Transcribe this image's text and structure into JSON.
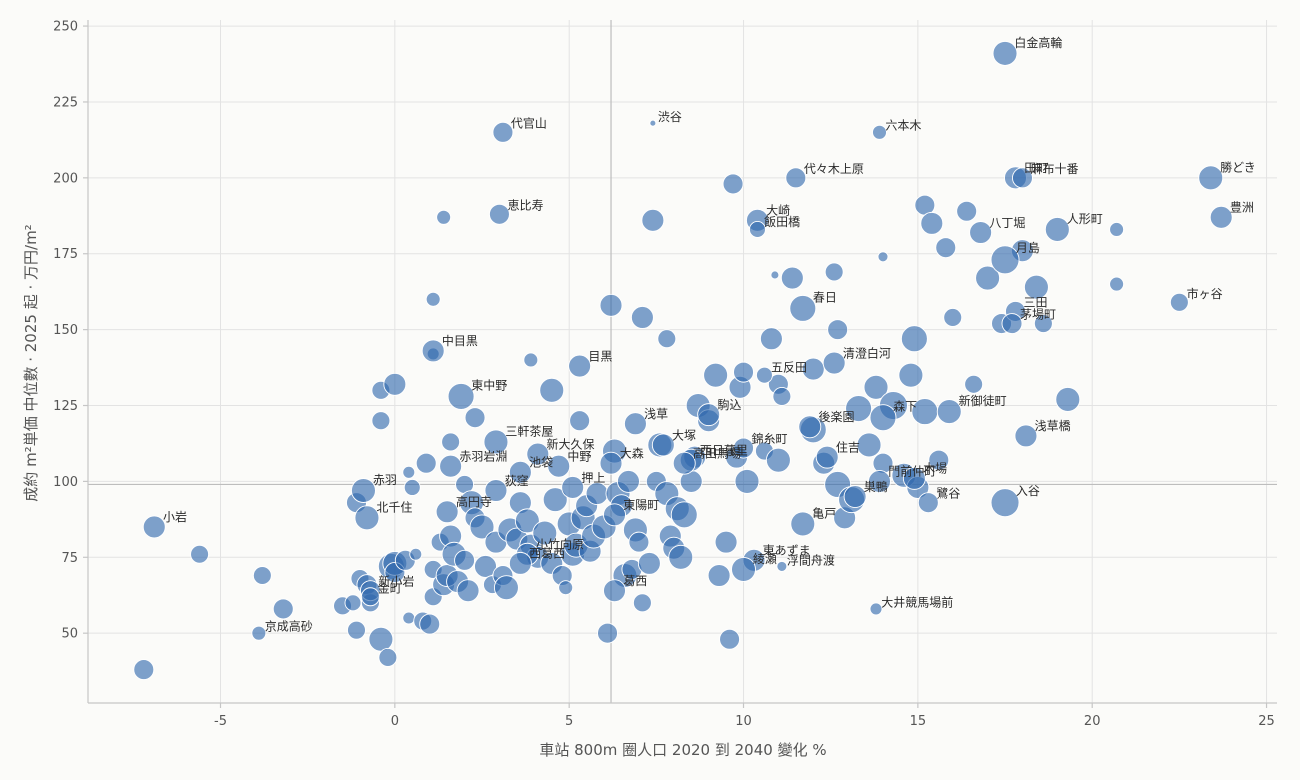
{
  "chart_data": {
    "type": "scatter",
    "xlabel": "車站 800m 圈人口 2020 到 2040 變化 %",
    "ylabel": "成約 m²単価 中位數 · 2025 起 · 万円/m²",
    "xlim": [
      -8.8,
      25.3
    ],
    "ylim": [
      27,
      252
    ],
    "xticks": [
      -5,
      0,
      5,
      10,
      15,
      20,
      25
    ],
    "yticks": [
      50,
      75,
      100,
      125,
      150,
      175,
      200,
      225,
      250
    ],
    "grid": true,
    "reference_lines": {
      "x": 6.2,
      "y": 99
    },
    "point_color": "#2e68ad",
    "labeled_points": [
      {
        "name": "白金高輪",
        "x": 17.5,
        "y": 241,
        "size": 12
      },
      {
        "name": "渋谷",
        "x": 7.4,
        "y": 218,
        "size": 3
      },
      {
        "name": "代官山",
        "x": 3.1,
        "y": 215,
        "size": 10
      },
      {
        "name": "六本木",
        "x": 13.9,
        "y": 215,
        "size": 7
      },
      {
        "name": "代々木上原",
        "x": 11.5,
        "y": 200,
        "size": 10
      },
      {
        "name": "田町",
        "x": 17.8,
        "y": 200,
        "size": 11
      },
      {
        "name": "麻布十番",
        "x": 18.0,
        "y": 200,
        "size": 10
      },
      {
        "name": "勝どき",
        "x": 23.4,
        "y": 200,
        "size": 12
      },
      {
        "name": "恵比寿",
        "x": 3.0,
        "y": 188,
        "size": 10
      },
      {
        "name": "大崎",
        "x": 10.4,
        "y": 186,
        "size": 11
      },
      {
        "name": "飯田橋",
        "x": 10.4,
        "y": 183,
        "size": 8
      },
      {
        "name": "八丁堀",
        "x": 16.8,
        "y": 182,
        "size": 11
      },
      {
        "name": "人形町",
        "x": 19.0,
        "y": 183,
        "size": 12
      },
      {
        "name": "豊洲",
        "x": 23.7,
        "y": 187,
        "size": 11
      },
      {
        "name": "月島",
        "x": 17.5,
        "y": 173,
        "size": 14
      },
      {
        "name": "春日",
        "x": 11.7,
        "y": 157,
        "size": 13
      },
      {
        "name": "市ヶ谷",
        "x": 22.5,
        "y": 159,
        "size": 9
      },
      {
        "name": "三田",
        "x": 17.8,
        "y": 156,
        "size": 10
      },
      {
        "name": "茅場町",
        "x": 17.7,
        "y": 152,
        "size": 10
      },
      {
        "name": "中目黒",
        "x": 1.1,
        "y": 143,
        "size": 11
      },
      {
        "name": "清澄白河",
        "x": 12.6,
        "y": 139,
        "size": 11
      },
      {
        "name": "目黒",
        "x": 5.3,
        "y": 138,
        "size": 11
      },
      {
        "name": "五反田",
        "x": 10.6,
        "y": 135,
        "size": 8
      },
      {
        "name": "東中野",
        "x": 1.9,
        "y": 128,
        "size": 13
      },
      {
        "name": "新御徒町",
        "x": 15.9,
        "y": 123,
        "size": 12
      },
      {
        "name": "駒込",
        "x": 9.0,
        "y": 122,
        "size": 11
      },
      {
        "name": "後楽園",
        "x": 11.9,
        "y": 118,
        "size": 11
      },
      {
        "name": "浅草",
        "x": 6.9,
        "y": 119,
        "size": 11
      },
      {
        "name": "森下",
        "x": 14.0,
        "y": 121,
        "size": 13
      },
      {
        "name": "浅草橋",
        "x": 18.1,
        "y": 115,
        "size": 11
      },
      {
        "name": "錦糸町",
        "x": 10.0,
        "y": 111,
        "size": 10
      },
      {
        "name": "大塚",
        "x": 7.7,
        "y": 112,
        "size": 11
      },
      {
        "name": "住吉",
        "x": 12.4,
        "y": 108,
        "size": 11
      },
      {
        "name": "三軒茶屋",
        "x": 2.9,
        "y": 113,
        "size": 12
      },
      {
        "name": "新大久保",
        "x": 4.1,
        "y": 109,
        "size": 11
      },
      {
        "name": "大森",
        "x": 6.2,
        "y": 106,
        "size": 11
      },
      {
        "name": "西日暮里",
        "x": 8.5,
        "y": 107,
        "size": 11
      },
      {
        "name": "高田馬場",
        "x": 8.3,
        "y": 106,
        "size": 11
      },
      {
        "name": "赤羽岩淵",
        "x": 1.6,
        "y": 105,
        "size": 11
      },
      {
        "name": "池袋",
        "x": 3.6,
        "y": 103,
        "size": 11
      },
      {
        "name": "中野",
        "x": 4.7,
        "y": 105,
        "size": 11
      },
      {
        "name": "荻窪",
        "x": 2.9,
        "y": 97,
        "size": 11
      },
      {
        "name": "押上",
        "x": 5.1,
        "y": 98,
        "size": 11
      },
      {
        "name": "門前仲町",
        "x": 13.9,
        "y": 100,
        "size": 11
      },
      {
        "name": "木場",
        "x": 14.9,
        "y": 101,
        "size": 11
      },
      {
        "name": "赤羽",
        "x": -0.9,
        "y": 97,
        "size": 12
      },
      {
        "name": "入谷",
        "x": 17.5,
        "y": 93,
        "size": 14
      },
      {
        "name": "巣鴨",
        "x": 13.2,
        "y": 95,
        "size": 11
      },
      {
        "name": "鷺谷",
        "x": 15.3,
        "y": 93,
        "size": 10
      },
      {
        "name": "北千住",
        "x": -0.8,
        "y": 88,
        "size": 12
      },
      {
        "name": "高円寺",
        "x": 1.5,
        "y": 90,
        "size": 11
      },
      {
        "name": "東陽町",
        "x": 6.3,
        "y": 89,
        "size": 11
      },
      {
        "name": "亀戸",
        "x": 11.7,
        "y": 86,
        "size": 12
      },
      {
        "name": "小岩",
        "x": -6.9,
        "y": 85,
        "size": 11
      },
      {
        "name": "小竹向原",
        "x": 3.8,
        "y": 76,
        "size": 11
      },
      {
        "name": "東あずま",
        "x": 10.3,
        "y": 74,
        "size": 11
      },
      {
        "name": "西葛西",
        "x": 3.6,
        "y": 73,
        "size": 11
      },
      {
        "name": "綾瀬",
        "x": 10.0,
        "y": 71,
        "size": 12
      },
      {
        "name": "浮間舟渡",
        "x": 11.1,
        "y": 72,
        "size": 5
      },
      {
        "name": "新小岩",
        "x": -0.7,
        "y": 64,
        "size": 10
      },
      {
        "name": "金町",
        "x": -0.7,
        "y": 62,
        "size": 9
      },
      {
        "name": "葛西",
        "x": 6.3,
        "y": 64,
        "size": 11
      },
      {
        "name": "大井競馬場前",
        "x": 13.8,
        "y": 58,
        "size": 6
      },
      {
        "name": "京成高砂",
        "x": -3.9,
        "y": 50,
        "size": 7
      }
    ],
    "unlabeled_points": [
      [
        -7.2,
        38,
        10
      ],
      [
        -5.6,
        76,
        9
      ],
      [
        -3.8,
        69,
        9
      ],
      [
        -3.2,
        58,
        10
      ],
      [
        -1.5,
        59,
        9
      ],
      [
        -1.2,
        60,
        8
      ],
      [
        -1.1,
        51,
        9
      ],
      [
        -1.0,
        68,
        9
      ],
      [
        -0.8,
        66,
        10
      ],
      [
        -0.7,
        60,
        9
      ],
      [
        -0.4,
        48,
        12
      ],
      [
        -0.2,
        42,
        9
      ],
      [
        -0.1,
        72,
        13
      ],
      [
        0.0,
        73,
        12
      ],
      [
        0.0,
        70,
        10
      ],
      [
        0.3,
        74,
        10
      ],
      [
        0.4,
        55,
        6
      ],
      [
        0.6,
        76,
        6
      ],
      [
        0.8,
        54,
        9
      ],
      [
        1.0,
        53,
        10
      ],
      [
        1.1,
        71,
        9
      ],
      [
        1.1,
        62,
        9
      ],
      [
        1.3,
        80,
        9
      ],
      [
        1.4,
        66,
        11
      ],
      [
        1.5,
        69,
        11
      ],
      [
        1.6,
        82,
        11
      ],
      [
        1.7,
        76,
        12
      ],
      [
        1.8,
        67,
        11
      ],
      [
        2.0,
        74,
        10
      ],
      [
        2.0,
        99,
        9
      ],
      [
        2.1,
        64,
        11
      ],
      [
        2.2,
        93,
        12
      ],
      [
        2.3,
        88,
        10
      ],
      [
        2.5,
        85,
        12
      ],
      [
        2.6,
        72,
        11
      ],
      [
        2.8,
        66,
        9
      ],
      [
        2.9,
        80,
        11
      ],
      [
        3.1,
        69,
        10
      ],
      [
        3.2,
        65,
        12
      ],
      [
        3.3,
        84,
        12
      ],
      [
        3.5,
        81,
        11
      ],
      [
        3.6,
        93,
        11
      ],
      [
        3.8,
        87,
        12
      ],
      [
        3.9,
        79,
        11
      ],
      [
        4.1,
        75,
        11
      ],
      [
        4.3,
        83,
        12
      ],
      [
        4.5,
        73,
        11
      ],
      [
        4.6,
        94,
        12
      ],
      [
        4.8,
        69,
        10
      ],
      [
        5.0,
        86,
        12
      ],
      [
        5.1,
        76,
        12
      ],
      [
        5.2,
        79,
        12
      ],
      [
        5.4,
        88,
        12
      ],
      [
        5.5,
        92,
        11
      ],
      [
        5.6,
        77,
        11
      ],
      [
        5.7,
        82,
        12
      ],
      [
        5.8,
        96,
        11
      ],
      [
        6.0,
        85,
        12
      ],
      [
        6.1,
        50,
        10
      ],
      [
        6.3,
        110,
        12
      ],
      [
        6.4,
        96,
        12
      ],
      [
        6.5,
        92,
        11
      ],
      [
        6.6,
        69,
        12
      ],
      [
        6.7,
        100,
        11
      ],
      [
        6.8,
        71,
        10
      ],
      [
        6.9,
        84,
        12
      ],
      [
        7.0,
        80,
        10
      ],
      [
        7.1,
        60,
        9
      ],
      [
        7.3,
        73,
        11
      ],
      [
        7.5,
        100,
        10
      ],
      [
        7.6,
        112,
        12
      ],
      [
        7.8,
        96,
        12
      ],
      [
        7.9,
        82,
        11
      ],
      [
        8.0,
        78,
        11
      ],
      [
        8.1,
        91,
        12
      ],
      [
        8.2,
        75,
        12
      ],
      [
        8.3,
        89,
        13
      ],
      [
        8.5,
        100,
        11
      ],
      [
        8.6,
        108,
        11
      ],
      [
        8.7,
        125,
        12
      ],
      [
        9.0,
        120,
        11
      ],
      [
        9.2,
        135,
        12
      ],
      [
        9.3,
        69,
        11
      ],
      [
        9.5,
        80,
        11
      ],
      [
        9.6,
        48,
        10
      ],
      [
        9.7,
        198,
        10
      ],
      [
        9.8,
        108,
        11
      ],
      [
        9.9,
        131,
        11
      ],
      [
        10.0,
        136,
        10
      ],
      [
        10.1,
        100,
        12
      ],
      [
        10.6,
        110,
        9
      ],
      [
        10.8,
        147,
        11
      ],
      [
        11.0,
        132,
        10
      ],
      [
        11.1,
        128,
        9
      ],
      [
        11.4,
        167,
        11
      ],
      [
        12.0,
        117,
        13
      ],
      [
        12.3,
        106,
        11
      ],
      [
        12.7,
        99,
        13
      ],
      [
        12.9,
        88,
        11
      ],
      [
        13.1,
        94,
        13
      ],
      [
        13.3,
        124,
        13
      ],
      [
        13.6,
        112,
        12
      ],
      [
        13.8,
        131,
        12
      ],
      [
        14.0,
        106,
        10
      ],
      [
        14.3,
        125,
        14
      ],
      [
        14.6,
        102,
        12
      ],
      [
        14.8,
        135,
        12
      ],
      [
        14.9,
        147,
        13
      ],
      [
        15.2,
        123,
        13
      ],
      [
        15.2,
        191,
        10
      ],
      [
        15.4,
        185,
        11
      ],
      [
        15.6,
        107,
        10
      ],
      [
        15.8,
        177,
        10
      ],
      [
        16.0,
        154,
        9
      ],
      [
        16.4,
        189,
        10
      ],
      [
        16.6,
        132,
        9
      ],
      [
        17.0,
        167,
        12
      ],
      [
        17.4,
        152,
        10
      ],
      [
        18.0,
        176,
        11
      ],
      [
        18.4,
        164,
        12
      ],
      [
        18.6,
        152,
        9
      ],
      [
        19.3,
        127,
        12
      ],
      [
        20.7,
        183,
        7
      ],
      [
        20.7,
        165,
        7
      ],
      [
        14.0,
        174,
        5
      ],
      [
        10.9,
        168,
        4
      ],
      [
        0.4,
        103,
        6
      ],
      [
        1.1,
        160,
        7
      ],
      [
        1.4,
        187,
        7
      ],
      [
        3.9,
        140,
        7
      ],
      [
        1.1,
        142,
        6
      ],
      [
        -0.4,
        130,
        9
      ],
      [
        -0.4,
        120,
        9
      ],
      [
        0.0,
        132,
        11
      ],
      [
        2.3,
        121,
        10
      ],
      [
        1.6,
        113,
        9
      ],
      [
        0.9,
        106,
        10
      ],
      [
        0.5,
        98,
        8
      ],
      [
        -1.1,
        93,
        10
      ],
      [
        4.5,
        130,
        12
      ],
      [
        5.3,
        120,
        10
      ],
      [
        6.2,
        158,
        11
      ],
      [
        7.1,
        154,
        11
      ],
      [
        7.4,
        186,
        11
      ],
      [
        7.8,
        147,
        9
      ],
      [
        12.6,
        169,
        9
      ],
      [
        12.7,
        150,
        10
      ],
      [
        11.0,
        107,
        12
      ],
      [
        12.0,
        137,
        11
      ],
      [
        15.0,
        98,
        11
      ],
      [
        4.9,
        65,
        7
      ]
    ]
  }
}
